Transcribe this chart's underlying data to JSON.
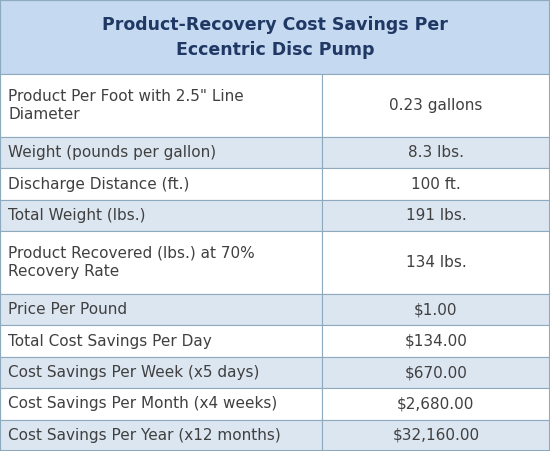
{
  "title": "Product-Recovery Cost Savings Per\nEccentric Disc Pump",
  "rows": [
    [
      "Product Per Foot with 2.5\" Line\nDiameter",
      "0.23 gallons"
    ],
    [
      "Weight (pounds per gallon)",
      "8.3 lbs."
    ],
    [
      "Discharge Distance (ft.)",
      "100 ft."
    ],
    [
      "Total Weight (lbs.)",
      "191 lbs."
    ],
    [
      "Product Recovered (lbs.) at 70%\nRecovery Rate",
      "134 lbs."
    ],
    [
      "Price Per Pound",
      "$1.00"
    ],
    [
      "Total Cost Savings Per Day",
      "$134.00"
    ],
    [
      "Cost Savings Per Week (x5 days)",
      "$670.00"
    ],
    [
      "Cost Savings Per Month (x4 weeks)",
      "$2,680.00"
    ],
    [
      "Cost Savings Per Year (x12 months)",
      "$32,160.00"
    ]
  ],
  "header_bg": "#c5d9f1",
  "row_bg_light": "#dce6f1",
  "row_bg_white": "#ffffff",
  "text_color": "#404040",
  "header_text_color": "#1f3864",
  "border_color": "#8eaabf",
  "title_fontsize": 12.5,
  "cell_fontsize": 11,
  "col_split": 0.585,
  "fig_width": 5.5,
  "fig_height": 4.51,
  "dpi": 100
}
